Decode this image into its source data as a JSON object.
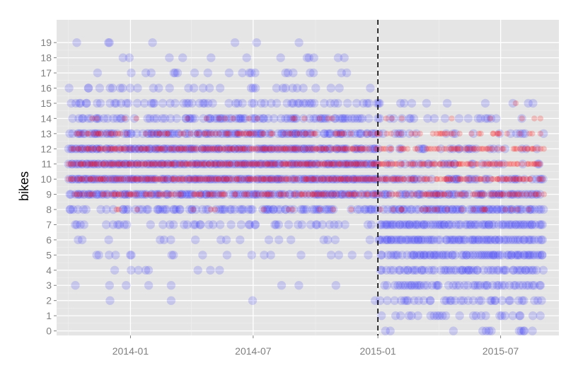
{
  "chart_data": {
    "type": "scatter",
    "title": "",
    "xlabel": "",
    "ylabel": "bikes",
    "xlim": [
      "2013-09-14",
      "2015-09-25"
    ],
    "ylim": [
      -0.3,
      20.5
    ],
    "x_ticks": [
      "2014-01",
      "2014-07",
      "2015-01",
      "2015-07"
    ],
    "x_tick_dates": [
      "2014-01-01",
      "2014-07-01",
      "2015-01-01",
      "2015-07-01"
    ],
    "y_ticks": [
      0,
      1,
      2,
      3,
      4,
      5,
      6,
      7,
      8,
      9,
      10,
      11,
      12,
      13,
      14,
      15,
      16,
      17,
      18,
      19
    ],
    "grid": true,
    "background": "#e5e5e5",
    "grid_color": "#ffffff",
    "reference_line": {
      "x": "2015-01-01",
      "style": "dashed",
      "color": "#000000"
    },
    "series": [
      {
        "color": "#0000ff",
        "marker": "circle-large-transparent",
        "start": "2013-10-01",
        "end": "2015-08-31",
        "levels_before": [
          {
            "bikes": 2,
            "density": 0.02
          },
          {
            "bikes": 3,
            "density": 0.04
          },
          {
            "bikes": 4,
            "density": 0.05
          },
          {
            "bikes": 5,
            "density": 0.1
          },
          {
            "bikes": 6,
            "density": 0.15
          },
          {
            "bikes": 7,
            "density": 0.35
          },
          {
            "bikes": 8,
            "density": 0.55
          },
          {
            "bikes": 9,
            "density": 0.85
          },
          {
            "bikes": 10,
            "density": 0.95
          },
          {
            "bikes": 11,
            "density": 0.95
          },
          {
            "bikes": 12,
            "density": 0.9
          },
          {
            "bikes": 13,
            "density": 0.8
          },
          {
            "bikes": 14,
            "density": 0.6
          },
          {
            "bikes": 15,
            "density": 0.4
          },
          {
            "bikes": 16,
            "density": 0.25
          },
          {
            "bikes": 17,
            "density": 0.12
          },
          {
            "bikes": 18,
            "density": 0.07
          },
          {
            "bikes": 19,
            "density": 0.03
          }
        ],
        "levels_after": [
          {
            "bikes": 0,
            "density": 0.08
          },
          {
            "bikes": 1,
            "density": 0.35
          },
          {
            "bikes": 2,
            "density": 0.45
          },
          {
            "bikes": 3,
            "density": 0.6
          },
          {
            "bikes": 4,
            "density": 0.75
          },
          {
            "bikes": 5,
            "density": 0.85
          },
          {
            "bikes": 6,
            "density": 0.9
          },
          {
            "bikes": 7,
            "density": 0.9
          },
          {
            "bikes": 8,
            "density": 0.8
          },
          {
            "bikes": 9,
            "density": 0.7
          },
          {
            "bikes": 10,
            "density": 0.55
          },
          {
            "bikes": 11,
            "density": 0.35
          },
          {
            "bikes": 12,
            "density": 0.25
          },
          {
            "bikes": 13,
            "density": 0.25
          },
          {
            "bikes": 14,
            "density": 0.2
          },
          {
            "bikes": 15,
            "density": 0.08
          }
        ]
      },
      {
        "color": "#ff0000",
        "marker": "circle-small-transparent",
        "start": "2013-10-01",
        "end": "2015-08-31",
        "levels_before": [
          {
            "bikes": 8,
            "density": 0.08
          },
          {
            "bikes": 9,
            "density": 0.6
          },
          {
            "bikes": 10,
            "density": 0.95
          },
          {
            "bikes": 11,
            "density": 0.95
          },
          {
            "bikes": 12,
            "density": 0.9
          },
          {
            "bikes": 13,
            "density": 0.45
          },
          {
            "bikes": 14,
            "density": 0.12
          }
        ],
        "levels_after": [
          {
            "bikes": 8,
            "density": 0.3
          },
          {
            "bikes": 9,
            "density": 0.55
          },
          {
            "bikes": 10,
            "density": 0.85
          },
          {
            "bikes": 11,
            "density": 0.85
          },
          {
            "bikes": 12,
            "density": 0.7
          },
          {
            "bikes": 13,
            "density": 0.45
          },
          {
            "bikes": 14,
            "density": 0.12
          },
          {
            "bikes": 15,
            "density": 0.04
          }
        ]
      }
    ]
  }
}
